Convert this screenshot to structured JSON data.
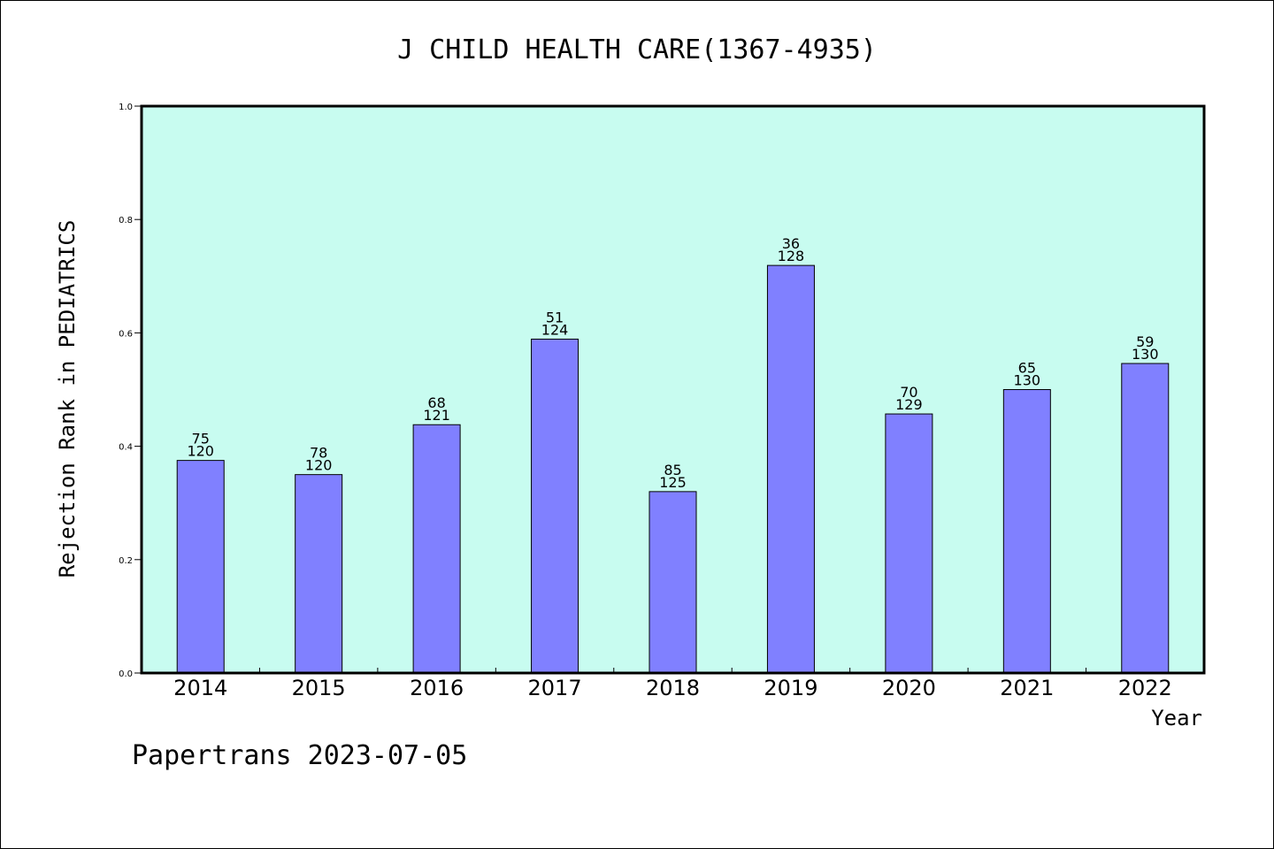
{
  "chart_data": {
    "type": "bar",
    "title": "J CHILD HEALTH CARE(1367-4935)",
    "xlabel": "Year",
    "ylabel": "Rejection Rank in PEDIATRICS",
    "ylim": [
      0,
      1.0
    ],
    "yticks": [
      "0.0",
      "0.2",
      "0.4",
      "0.6",
      "0.8",
      "1.0"
    ],
    "categories": [
      "2014",
      "2015",
      "2016",
      "2017",
      "2018",
      "2019",
      "2020",
      "2021",
      "2022"
    ],
    "values": [
      0.375,
      0.35,
      0.438,
      0.589,
      0.32,
      0.719,
      0.457,
      0.5,
      0.546
    ],
    "bar_labels": [
      {
        "rank": "75",
        "total": "120"
      },
      {
        "rank": "78",
        "total": "120"
      },
      {
        "rank": "68",
        "total": "121"
      },
      {
        "rank": "51",
        "total": "124"
      },
      {
        "rank": "85",
        "total": "125"
      },
      {
        "rank": "36",
        "total": "128"
      },
      {
        "rank": "70",
        "total": "129"
      },
      {
        "rank": "65",
        "total": "130"
      },
      {
        "rank": "59",
        "total": "130"
      }
    ],
    "grid": false,
    "colors": {
      "bar": "#8080ff",
      "plot_background": "#c8fcf0",
      "axis": "#000000"
    }
  },
  "footer": "Papertrans 2023-07-05"
}
